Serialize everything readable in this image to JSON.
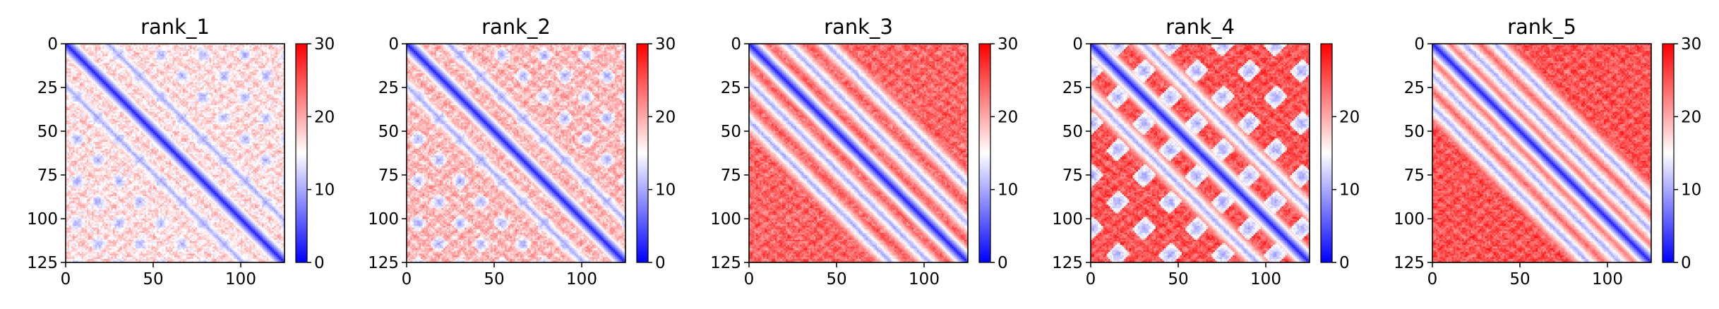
{
  "chart_data": [
    {
      "type": "heatmap",
      "title": "rank_1",
      "x_ticks": [
        0,
        50,
        100
      ],
      "y_ticks": [
        0,
        25,
        50,
        75,
        100,
        125
      ],
      "xlim": [
        0,
        125
      ],
      "ylim": [
        125,
        0
      ],
      "colorbar": {
        "ticks": [
          0,
          10,
          20,
          30
        ],
        "min": 0,
        "max": 30,
        "colormap": "bwr"
      },
      "pattern": {
        "bands": [
          24
        ],
        "blobs": true,
        "background": 17
      }
    },
    {
      "type": "heatmap",
      "title": "rank_2",
      "x_ticks": [
        0,
        50,
        100
      ],
      "y_ticks": [
        0,
        25,
        50,
        75,
        100,
        125
      ],
      "xlim": [
        0,
        125
      ],
      "ylim": [
        125,
        0
      ],
      "colorbar": {
        "ticks": [
          0,
          10,
          20,
          30
        ],
        "min": 0,
        "max": 30,
        "colormap": "bwr"
      },
      "pattern": {
        "bands": [
          24
        ],
        "blobs": true,
        "background": 19
      }
    },
    {
      "type": "heatmap",
      "title": "rank_3",
      "x_ticks": [
        0,
        50,
        100
      ],
      "y_ticks": [
        0,
        25,
        50,
        75,
        100,
        125
      ],
      "xlim": [
        0,
        125
      ],
      "ylim": [
        125,
        0
      ],
      "colorbar": {
        "ticks": [
          0,
          10,
          20,
          30
        ],
        "min": 0,
        "max": 30,
        "colormap": "bwr"
      },
      "pattern": {
        "bands": [
          22,
          44
        ],
        "blobs": false,
        "background": 24
      }
    },
    {
      "type": "heatmap",
      "title": "rank_4",
      "x_ticks": [
        0,
        50,
        100
      ],
      "y_ticks": [
        0,
        25,
        50,
        75,
        100,
        125
      ],
      "xlim": [
        0,
        125
      ],
      "ylim": [
        125,
        0
      ],
      "colorbar": {
        "ticks": [
          0,
          10,
          20
        ],
        "min": 0,
        "max": 30,
        "colormap": "bwr"
      },
      "pattern": {
        "bands": [
          30
        ],
        "blobs": true,
        "background": 25
      }
    },
    {
      "type": "heatmap",
      "title": "rank_5",
      "x_ticks": [
        0,
        50,
        100
      ],
      "y_ticks": [
        0,
        25,
        50,
        75,
        100,
        125
      ],
      "xlim": [
        0,
        125
      ],
      "ylim": [
        125,
        0
      ],
      "colorbar": {
        "ticks": [
          0,
          10,
          20,
          30
        ],
        "min": 0,
        "max": 30,
        "colormap": "bwr"
      },
      "pattern": {
        "bands": [
          18,
          36
        ],
        "blobs": false,
        "background": 25
      }
    }
  ]
}
